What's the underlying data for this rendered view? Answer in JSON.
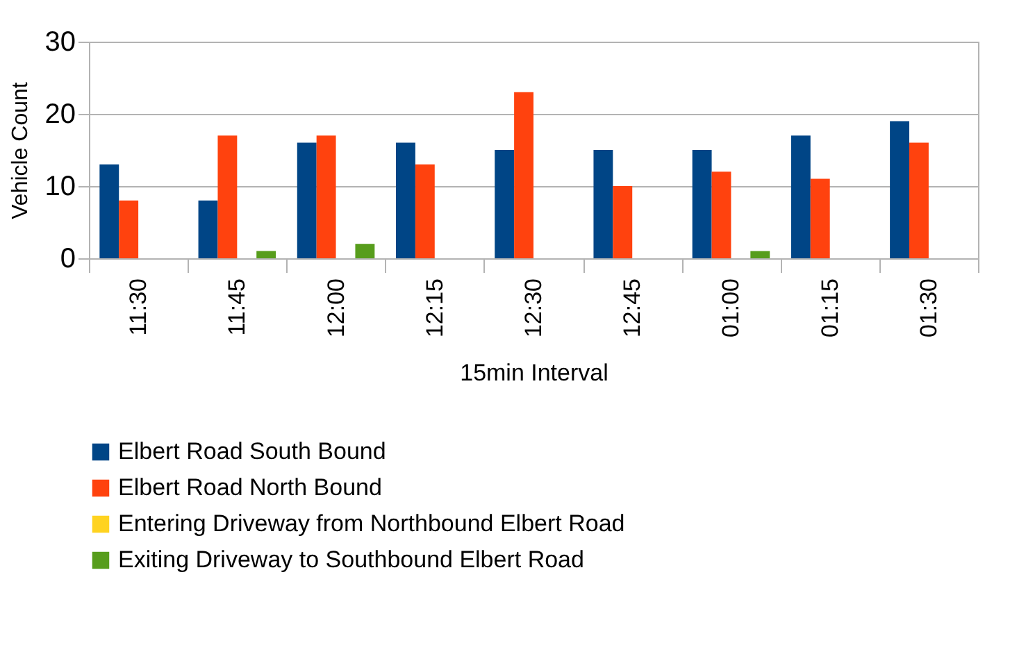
{
  "chart_data": {
    "type": "bar",
    "xlabel": "15min Interval",
    "ylabel": "Vehicle Count",
    "categories": [
      "11:30",
      "11:45",
      "12:00",
      "12:15",
      "12:30",
      "12:45",
      "01:00",
      "01:15",
      "01:30"
    ],
    "series": [
      {
        "name": "Elbert Road South Bound",
        "color": "#004586",
        "values": [
          13,
          8,
          16,
          16,
          15,
          15,
          15,
          17,
          19
        ]
      },
      {
        "name": "Elbert Road North Bound",
        "color": "#ff420e",
        "values": [
          8,
          17,
          17,
          13,
          23,
          10,
          12,
          11,
          16
        ]
      },
      {
        "name": "Entering Driveway from Northbound Elbert Road",
        "color": "#ffd320",
        "values": [
          0,
          0,
          0,
          0,
          0,
          0,
          0,
          0,
          0
        ]
      },
      {
        "name": "Exiting Driveway to Southbound Elbert Road",
        "color": "#579d1c",
        "values": [
          0,
          1,
          2,
          0,
          0,
          0,
          1,
          0,
          0
        ]
      }
    ],
    "ylim": [
      0,
      30
    ],
    "yticks": [
      0,
      10,
      20,
      30
    ],
    "grid": "y",
    "legend": "bottom"
  }
}
